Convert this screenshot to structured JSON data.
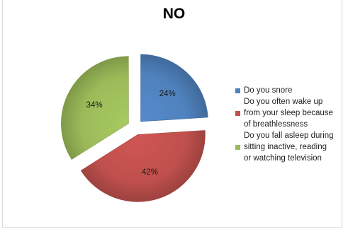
{
  "chart_data": {
    "type": "pie",
    "title": "NO",
    "slices": [
      {
        "label": "Do you snore",
        "value": 24,
        "value_label": "24%",
        "color": "#4f81bd"
      },
      {
        "label": "Do you often wake up\nfrom your sleep because\nof breathlessness",
        "value": 42,
        "value_label": "42%",
        "color": "#c0504d"
      },
      {
        "label": "Do you fall asleep during\nsitting inactive, reading\nor watching television",
        "value": 34,
        "value_label": "34%",
        "color": "#9bbb59"
      }
    ],
    "legend_position": "right",
    "exploded": true
  }
}
